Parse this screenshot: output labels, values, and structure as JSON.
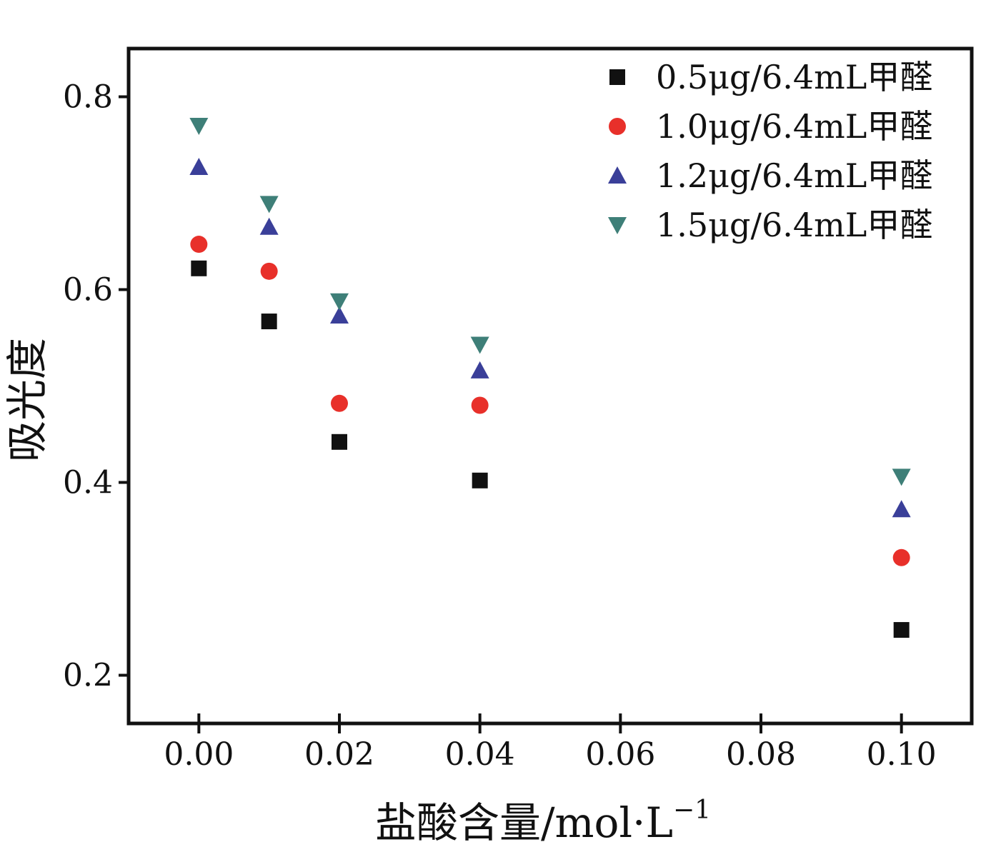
{
  "chart_data": {
    "type": "scatter",
    "xlabel": "盐酸含量/mol·L",
    "xlabel_superscript": "−1",
    "ylabel": "吸光度",
    "xlim": [
      -0.01,
      0.11
    ],
    "ylim": [
      0.15,
      0.85
    ],
    "x_ticks": [
      "0.00",
      "0.02",
      "0.04",
      "0.06",
      "0.08",
      "0.10"
    ],
    "y_ticks": [
      "0.2",
      "0.4",
      "0.6",
      "0.8"
    ],
    "legend_position": "top-right",
    "series": [
      {
        "name": "0.5μg/6.4mL甲醛",
        "marker": "square",
        "color": "#111111",
        "x": [
          0.0,
          0.01,
          0.02,
          0.04,
          0.1
        ],
        "y": [
          0.622,
          0.567,
          0.442,
          0.402,
          0.247
        ]
      },
      {
        "name": "1.0μg/6.4mL甲醛",
        "marker": "circle",
        "color": "#e8302a",
        "x": [
          0.0,
          0.01,
          0.02,
          0.04,
          0.1
        ],
        "y": [
          0.647,
          0.619,
          0.482,
          0.48,
          0.322
        ]
      },
      {
        "name": "1.2μg/6.4mL甲醛",
        "marker": "triangle-up",
        "color": "#3a3f99",
        "x": [
          0.0,
          0.01,
          0.02,
          0.04,
          0.1
        ],
        "y": [
          0.727,
          0.665,
          0.573,
          0.516,
          0.372
        ]
      },
      {
        "name": "1.5μg/6.4mL甲醛",
        "marker": "triangle-down",
        "color": "#3e7f78",
        "x": [
          0.0,
          0.01,
          0.02,
          0.04,
          0.1
        ],
        "y": [
          0.77,
          0.689,
          0.588,
          0.543,
          0.406
        ]
      }
    ]
  }
}
